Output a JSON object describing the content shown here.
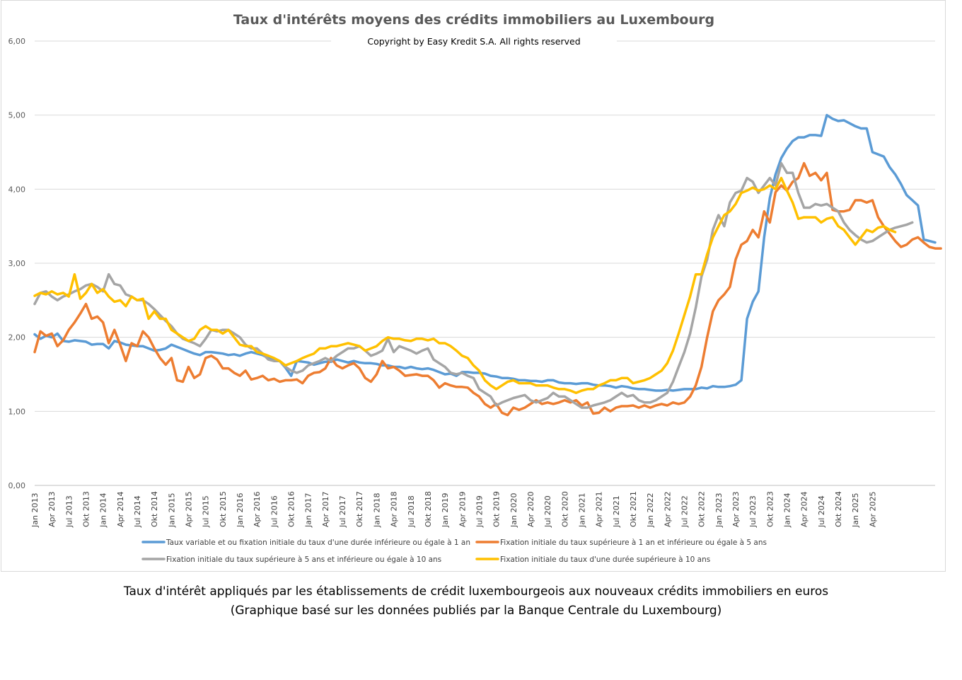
{
  "chart_data": {
    "type": "line",
    "title": "Taux d'intérêts moyens des crédits immobiliers au Luxembourg",
    "subtitle": "Copyright by Easy Kredit S.A. All rights reserved",
    "ylim": [
      0,
      6
    ],
    "yticks": [
      "0,00",
      "1,00",
      "2,00",
      "3,00",
      "4,00",
      "5,00",
      "6,00"
    ],
    "grid": true,
    "legend_position": "bottom",
    "x_start": "Jan 2013",
    "x_labels": [
      "Jan 2013",
      "Apr 2013",
      "Jul 2013",
      "Okt 2013",
      "Jan 2014",
      "Apr 2014",
      "Jul 2014",
      "Okt 2014",
      "Jan 2015",
      "Apr 2015",
      "Jul 2015",
      "Okt 2015",
      "Jan 2016",
      "Apr 2016",
      "Jul 2016",
      "Okt 2016",
      "Jan 2017",
      "Apr 2017",
      "Jul 2017",
      "Okt 2017",
      "Jan 2018",
      "Apr 2018",
      "Jul 2018",
      "Okt 2018",
      "Jan 2019",
      "Apr 2019",
      "Jul 2019",
      "Okt 2019",
      "Jan 2020",
      "Apr 2020",
      "Jul 2020",
      "Okt 2020",
      "Jan 2021",
      "Apr 2021",
      "Jul 2021",
      "Okt 2021",
      "Jan 2022",
      "Apr 2022",
      "Jul 2022",
      "Okt 2022",
      "Jan 2023",
      "Apr 2023",
      "Jul 2023",
      "Okt 2023",
      "Jan 2024",
      "Apr 2024",
      "Jul 2024",
      "Okt 2024",
      "Jan 2025",
      "Apr 2025"
    ],
    "series": [
      {
        "name": "Taux variable et ou fixation initiale du taux d'une durée inférieure ou égale à 1 an",
        "color": "#5b9bd5",
        "values": [
          2.04,
          1.98,
          2.02,
          2.0,
          2.05,
          1.95,
          1.94,
          1.96,
          1.95,
          1.94,
          1.9,
          1.91,
          1.91,
          1.85,
          1.95,
          1.93,
          1.9,
          1.89,
          1.88,
          1.88,
          1.85,
          1.82,
          1.83,
          1.85,
          1.9,
          1.87,
          1.84,
          1.81,
          1.78,
          1.76,
          1.8,
          1.8,
          1.79,
          1.78,
          1.76,
          1.77,
          1.75,
          1.78,
          1.8,
          1.78,
          1.76,
          1.72,
          1.71,
          1.68,
          1.59,
          1.48,
          1.68,
          1.67,
          1.66,
          1.63,
          1.65,
          1.67,
          1.67,
          1.7,
          1.68,
          1.66,
          1.68,
          1.66,
          1.65,
          1.65,
          1.64,
          1.62,
          1.62,
          1.6,
          1.6,
          1.58,
          1.6,
          1.58,
          1.57,
          1.58,
          1.56,
          1.53,
          1.5,
          1.51,
          1.48,
          1.53,
          1.53,
          1.52,
          1.52,
          1.51,
          1.48,
          1.47,
          1.45,
          1.45,
          1.44,
          1.42,
          1.42,
          1.41,
          1.41,
          1.4,
          1.42,
          1.42,
          1.39,
          1.38,
          1.38,
          1.37,
          1.38,
          1.38,
          1.36,
          1.35,
          1.35,
          1.34,
          1.32,
          1.34,
          1.33,
          1.31,
          1.3,
          1.3,
          1.29,
          1.28,
          1.28,
          1.29,
          1.28,
          1.29,
          1.3,
          1.3,
          1.3,
          1.32,
          1.31,
          1.34,
          1.33,
          1.33,
          1.34,
          1.36,
          1.42,
          2.25,
          2.48,
          2.62,
          3.35,
          3.88,
          4.2,
          4.42,
          4.55,
          4.65,
          4.7,
          4.7,
          4.73,
          4.73,
          4.72,
          5.0,
          4.95,
          4.92,
          4.93,
          4.89,
          4.85,
          4.82,
          4.82,
          4.5,
          4.47,
          4.44,
          4.3,
          4.2,
          4.07,
          3.92,
          3.85,
          3.78,
          3.32,
          3.3,
          3.28
        ]
      },
      {
        "name": "Fixation initiale du taux supérieure à 1 an et inférieure ou égale à 5 ans",
        "color": "#ed7d31",
        "values": [
          1.8,
          2.08,
          2.02,
          2.05,
          1.88,
          1.96,
          2.1,
          2.2,
          2.32,
          2.45,
          2.25,
          2.28,
          2.2,
          1.92,
          2.1,
          1.9,
          1.68,
          1.92,
          1.88,
          2.08,
          2.0,
          1.85,
          1.72,
          1.63,
          1.72,
          1.42,
          1.4,
          1.6,
          1.45,
          1.5,
          1.72,
          1.75,
          1.7,
          1.58,
          1.58,
          1.52,
          1.48,
          1.55,
          1.43,
          1.45,
          1.48,
          1.42,
          1.44,
          1.4,
          1.42,
          1.42,
          1.43,
          1.38,
          1.48,
          1.52,
          1.53,
          1.58,
          1.72,
          1.62,
          1.58,
          1.62,
          1.65,
          1.58,
          1.45,
          1.4,
          1.5,
          1.68,
          1.58,
          1.6,
          1.55,
          1.48,
          1.49,
          1.5,
          1.48,
          1.48,
          1.42,
          1.32,
          1.38,
          1.35,
          1.33,
          1.33,
          1.32,
          1.25,
          1.2,
          1.1,
          1.05,
          1.1,
          0.98,
          0.95,
          1.05,
          1.02,
          1.05,
          1.1,
          1.15,
          1.1,
          1.12,
          1.1,
          1.12,
          1.15,
          1.12,
          1.15,
          1.08,
          1.12,
          0.97,
          0.98,
          1.05,
          1.0,
          1.05,
          1.07,
          1.07,
          1.08,
          1.05,
          1.08,
          1.05,
          1.08,
          1.1,
          1.08,
          1.12,
          1.1,
          1.12,
          1.2,
          1.35,
          1.6,
          2.0,
          2.35,
          2.5,
          2.58,
          2.68,
          3.05,
          3.25,
          3.3,
          3.45,
          3.35,
          3.7,
          3.55,
          3.96,
          4.05,
          3.98,
          4.1,
          4.15,
          4.35,
          4.18,
          4.22,
          4.12,
          4.22,
          3.72,
          3.7,
          3.7,
          3.72,
          3.85,
          3.85,
          3.82,
          3.85,
          3.62,
          3.5,
          3.4,
          3.3,
          3.22,
          3.25,
          3.32,
          3.35,
          3.28,
          3.22,
          3.2,
          3.2
        ]
      },
      {
        "name": "Fixation initiale du taux supérieure à 5 ans et inférieure ou égale à 10 ans",
        "color": "#a5a5a5",
        "values": [
          2.45,
          2.6,
          2.62,
          2.55,
          2.5,
          2.55,
          2.58,
          2.62,
          2.65,
          2.7,
          2.72,
          2.68,
          2.62,
          2.85,
          2.72,
          2.7,
          2.58,
          2.55,
          2.5,
          2.5,
          2.45,
          2.38,
          2.3,
          2.22,
          2.15,
          2.05,
          1.98,
          1.95,
          1.92,
          1.88,
          1.98,
          2.1,
          2.08,
          2.1,
          2.1,
          2.05,
          2.0,
          1.9,
          1.85,
          1.85,
          1.78,
          1.7,
          1.68,
          1.68,
          1.6,
          1.55,
          1.52,
          1.55,
          1.62,
          1.65,
          1.68,
          1.72,
          1.68,
          1.75,
          1.8,
          1.85,
          1.85,
          1.88,
          1.82,
          1.75,
          1.78,
          1.82,
          1.98,
          1.8,
          1.88,
          1.85,
          1.82,
          1.78,
          1.82,
          1.85,
          1.7,
          1.65,
          1.6,
          1.52,
          1.5,
          1.52,
          1.48,
          1.45,
          1.3,
          1.25,
          1.2,
          1.08,
          1.12,
          1.15,
          1.18,
          1.2,
          1.22,
          1.15,
          1.12,
          1.15,
          1.18,
          1.25,
          1.2,
          1.2,
          1.15,
          1.1,
          1.05,
          1.05,
          1.08,
          1.1,
          1.12,
          1.15,
          1.2,
          1.25,
          1.2,
          1.22,
          1.15,
          1.12,
          1.12,
          1.15,
          1.2,
          1.25,
          1.4,
          1.6,
          1.8,
          2.05,
          2.4,
          2.82,
          3.05,
          3.45,
          3.65,
          3.5,
          3.82,
          3.95,
          3.98,
          4.15,
          4.1,
          3.95,
          4.05,
          4.15,
          4.05,
          4.35,
          4.22,
          4.22,
          3.95,
          3.75,
          3.75,
          3.8,
          3.78,
          3.8,
          3.75,
          3.7,
          3.55,
          3.45,
          3.38,
          3.32,
          3.28,
          3.3,
          3.35,
          3.4,
          3.45,
          3.48,
          3.5,
          3.52,
          3.55
        ]
      },
      {
        "name": "Fixation initiale du taux d'une durée supérieure à 10 ans",
        "color": "#ffc000",
        "values": [
          2.56,
          2.6,
          2.58,
          2.62,
          2.58,
          2.6,
          2.55,
          2.85,
          2.52,
          2.6,
          2.72,
          2.6,
          2.65,
          2.55,
          2.48,
          2.5,
          2.42,
          2.55,
          2.5,
          2.52,
          2.25,
          2.35,
          2.25,
          2.25,
          2.1,
          2.05,
          2.0,
          1.95,
          1.98,
          2.1,
          2.15,
          2.1,
          2.1,
          2.05,
          2.1,
          2.0,
          1.9,
          1.88,
          1.88,
          1.8,
          1.78,
          1.75,
          1.72,
          1.68,
          1.62,
          1.65,
          1.68,
          1.72,
          1.75,
          1.78,
          1.85,
          1.85,
          1.88,
          1.88,
          1.9,
          1.92,
          1.9,
          1.88,
          1.82,
          1.85,
          1.88,
          1.95,
          2.0,
          1.98,
          1.98,
          1.96,
          1.95,
          1.98,
          1.98,
          1.96,
          1.98,
          1.92,
          1.92,
          1.88,
          1.82,
          1.75,
          1.72,
          1.62,
          1.55,
          1.42,
          1.35,
          1.3,
          1.35,
          1.4,
          1.42,
          1.38,
          1.38,
          1.38,
          1.35,
          1.35,
          1.35,
          1.32,
          1.3,
          1.3,
          1.28,
          1.25,
          1.28,
          1.3,
          1.3,
          1.35,
          1.38,
          1.42,
          1.42,
          1.45,
          1.45,
          1.38,
          1.4,
          1.42,
          1.45,
          1.5,
          1.55,
          1.65,
          1.82,
          2.05,
          2.3,
          2.55,
          2.85,
          2.85,
          3.12,
          3.35,
          3.5,
          3.65,
          3.7,
          3.8,
          3.95,
          3.98,
          4.02,
          3.98,
          4.0,
          4.05,
          4.0,
          4.15,
          3.98,
          3.82,
          3.6,
          3.62,
          3.62,
          3.62,
          3.55,
          3.6,
          3.62,
          3.5,
          3.45,
          3.35,
          3.25,
          3.35,
          3.45,
          3.42,
          3.48,
          3.5,
          3.45,
          3.42
        ]
      }
    ]
  },
  "caption": {
    "line1": "Taux d'intérêt appliqués par les établissements de crédit luxembourgeois aux nouveaux crédits immobiliers en euros",
    "line2": "(Graphique basé sur les données publiés par la Banque Centrale du Luxembourg)"
  }
}
